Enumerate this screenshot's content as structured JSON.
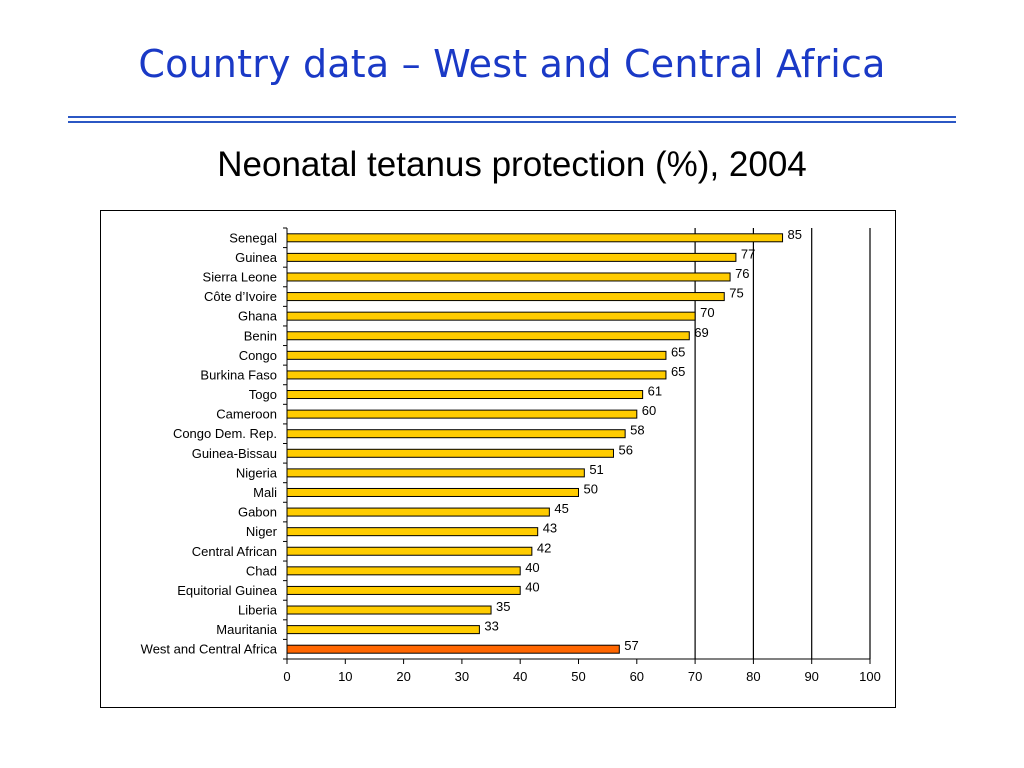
{
  "slide": {
    "title": "Country data – West and Central Africa"
  },
  "chart_data": {
    "type": "bar",
    "orientation": "horizontal",
    "title": "Neonatal tetanus protection (%), 2004",
    "xlabel": "",
    "ylabel": "",
    "xlim": [
      0,
      100
    ],
    "x_ticks": [
      0,
      10,
      20,
      30,
      40,
      50,
      60,
      70,
      80,
      90,
      100
    ],
    "grid": "vertical gridlines at 70, 80, 90, 100",
    "legend": "none",
    "categories": [
      "Senegal",
      "Guinea",
      "Sierra Leone",
      "Côte d’Ivoire",
      "Ghana",
      "Benin",
      "Congo",
      "Burkina Faso",
      "Togo",
      "Cameroon",
      "Congo Dem. Rep.",
      "Guinea-Bissau",
      "Nigeria",
      "Mali",
      "Gabon",
      "Niger",
      "Central African",
      "Chad",
      "Equitorial Guinea",
      "Liberia",
      "Mauritania",
      "West and Central Africa"
    ],
    "values": [
      85,
      77,
      76,
      75,
      70,
      69,
      65,
      65,
      61,
      60,
      58,
      56,
      51,
      50,
      45,
      43,
      42,
      40,
      40,
      35,
      33,
      57
    ],
    "colors": {
      "bar": "#ffcc00",
      "highlight_bar": "#ff6600",
      "highlight_category": "West and Central Africa"
    }
  }
}
